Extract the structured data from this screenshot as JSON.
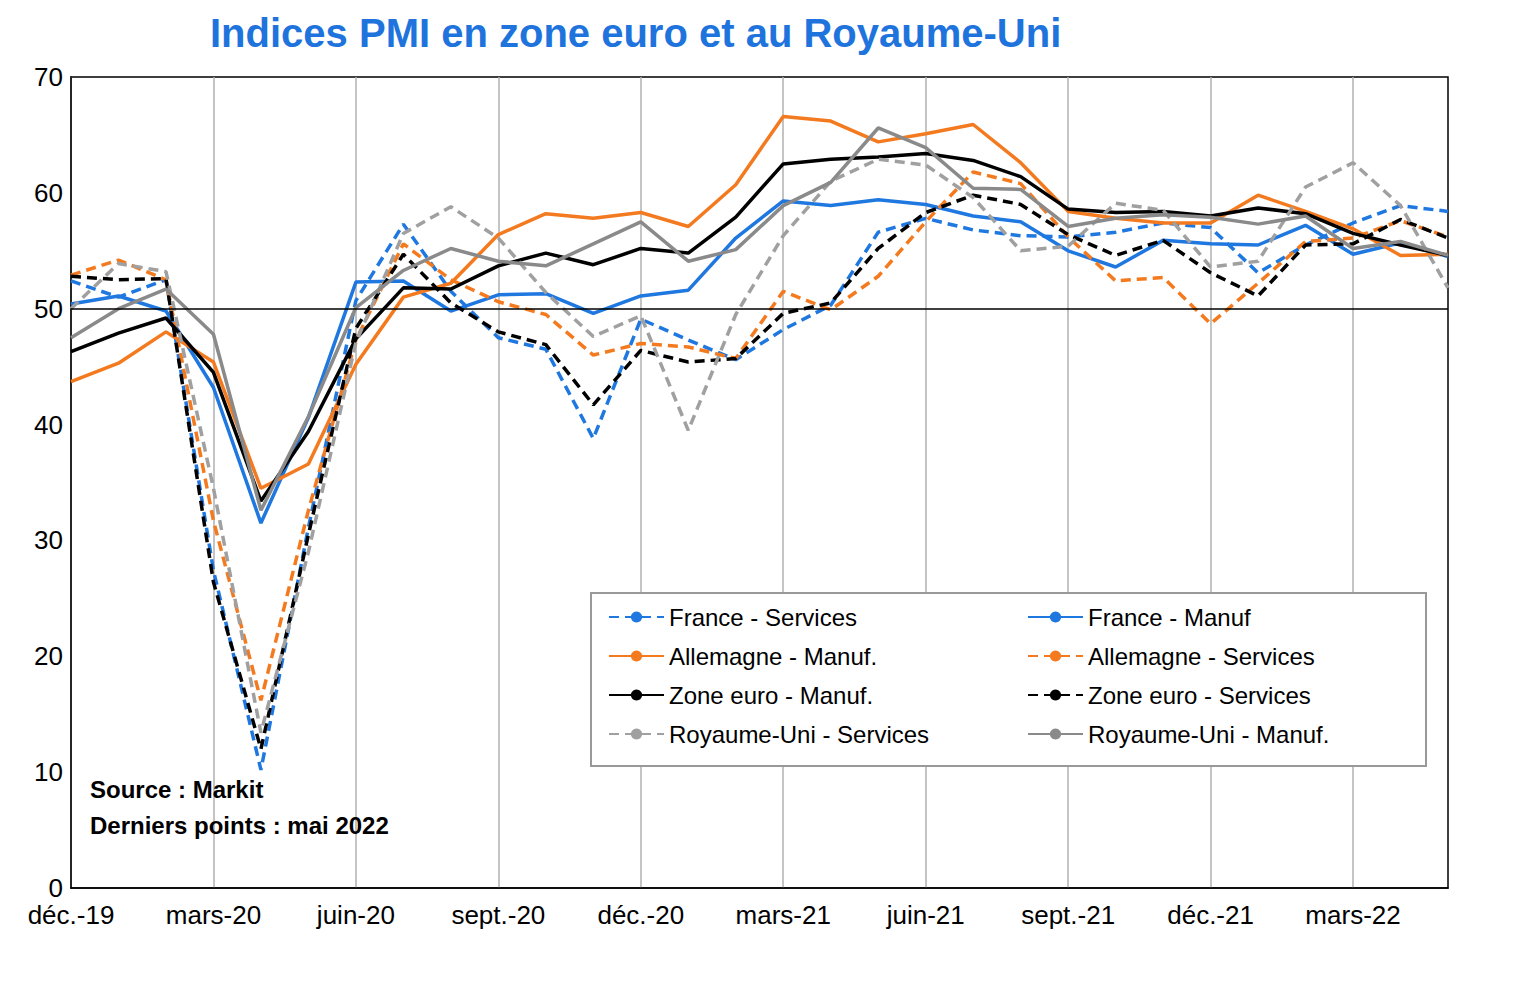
{
  "chart_data": {
    "type": "line",
    "title": "Indices PMI en zone euro et au Royaume-Uni",
    "annotations": [
      "Source : Markit",
      "Derniers points : mai 2022"
    ],
    "categories": [
      "déc.-19",
      null,
      null,
      "mars-20",
      null,
      null,
      "juin-20",
      null,
      null,
      "sept.-20",
      null,
      null,
      "déc.-20",
      null,
      null,
      "mars-21",
      null,
      null,
      "juin-21",
      null,
      null,
      "sept.-21",
      null,
      null,
      "déc.-21",
      null,
      null,
      "mars-22",
      null,
      null
    ],
    "ylim": [
      0,
      70
    ],
    "yticks": [
      0,
      10,
      20,
      30,
      40,
      50,
      60,
      70
    ],
    "grid": "x",
    "reference_line": 50,
    "legend": "bottom-right",
    "series": [
      {
        "name": "France - Services",
        "color": "#1f77e0",
        "line_style": "dashed",
        "values": [
          52.4,
          51.0,
          52.5,
          27.4,
          10.2,
          31.1,
          50.7,
          57.3,
          51.5,
          47.5,
          46.5,
          38.8,
          49.1,
          47.3,
          45.6,
          48.2,
          50.3,
          56.6,
          57.8,
          56.8,
          56.3,
          56.2,
          56.6,
          57.4,
          57.0,
          53.1,
          55.5,
          57.4,
          58.9,
          58.4
        ]
      },
      {
        "name": "France - Manuf",
        "color": "#1f77e0",
        "line_style": "solid",
        "values": [
          50.4,
          51.1,
          49.8,
          43.2,
          31.5,
          40.6,
          52.3,
          52.4,
          49.8,
          51.2,
          51.3,
          49.6,
          51.1,
          51.6,
          56.1,
          59.3,
          58.9,
          59.4,
          59.0,
          58.0,
          57.5,
          55.0,
          53.6,
          55.9,
          55.6,
          55.5,
          57.2,
          54.7,
          55.7,
          54.5
        ]
      },
      {
        "name": "Allemagne - Manuf.",
        "color": "#f47a1f",
        "line_style": "solid",
        "values": [
          43.7,
          45.3,
          48.0,
          45.4,
          34.5,
          36.6,
          45.2,
          51.0,
          52.2,
          56.4,
          58.2,
          57.8,
          58.3,
          57.1,
          60.7,
          66.6,
          66.2,
          64.4,
          65.1,
          65.9,
          62.6,
          58.4,
          57.8,
          57.4,
          57.4,
          59.8,
          58.4,
          56.9,
          54.6,
          54.7
        ]
      },
      {
        "name": "Allemagne - Services",
        "color": "#f47a1f",
        "line_style": "dashed",
        "values": [
          52.9,
          54.2,
          52.5,
          31.7,
          16.2,
          32.6,
          47.3,
          55.6,
          52.5,
          50.6,
          49.5,
          46.0,
          47.0,
          46.7,
          45.7,
          51.5,
          49.9,
          52.8,
          57.5,
          61.8,
          60.8,
          56.2,
          52.4,
          52.7,
          48.7,
          52.2,
          55.8,
          56.1,
          57.6,
          56.2
        ]
      },
      {
        "name": "Zone euro - Manuf.",
        "color": "#000000",
        "line_style": "solid",
        "values": [
          46.3,
          47.9,
          49.2,
          44.5,
          33.4,
          39.4,
          47.4,
          51.8,
          51.7,
          53.7,
          54.8,
          53.8,
          55.2,
          54.8,
          57.9,
          62.5,
          62.9,
          63.1,
          63.4,
          62.8,
          61.4,
          58.6,
          58.3,
          58.4,
          58.0,
          58.7,
          58.2,
          56.5,
          55.5,
          54.6
        ]
      },
      {
        "name": "Zone euro - Services",
        "color": "#000000",
        "line_style": "dashed",
        "values": [
          52.8,
          52.5,
          52.6,
          26.4,
          12.0,
          30.5,
          48.3,
          54.7,
          50.5,
          48.0,
          46.9,
          41.7,
          46.4,
          45.4,
          45.7,
          49.6,
          50.5,
          55.2,
          58.3,
          59.8,
          59.0,
          56.4,
          54.6,
          55.9,
          53.1,
          51.1,
          55.5,
          55.6,
          57.7,
          56.1
        ]
      },
      {
        "name": "Royaume-Uni - Services",
        "color": "#a0a0a0",
        "line_style": "dashed",
        "values": [
          50.0,
          53.9,
          53.2,
          34.5,
          13.4,
          29.0,
          47.1,
          56.5,
          58.8,
          56.1,
          51.4,
          47.6,
          49.4,
          39.5,
          49.5,
          56.3,
          61.0,
          62.9,
          62.4,
          59.6,
          55.0,
          55.4,
          59.1,
          58.5,
          53.6,
          54.1,
          60.5,
          62.6,
          58.9,
          51.8
        ]
      },
      {
        "name": "Royaume-Uni - Manuf.",
        "color": "#8a8a8a",
        "line_style": "solid",
        "values": [
          47.5,
          50.0,
          51.7,
          47.8,
          32.6,
          40.7,
          50.1,
          53.3,
          55.2,
          54.1,
          53.7,
          55.6,
          57.5,
          54.1,
          55.1,
          58.9,
          60.9,
          65.6,
          63.9,
          60.4,
          60.3,
          57.1,
          57.8,
          58.1,
          57.9,
          57.3,
          58.0,
          55.2,
          55.8,
          54.6
        ]
      }
    ]
  }
}
